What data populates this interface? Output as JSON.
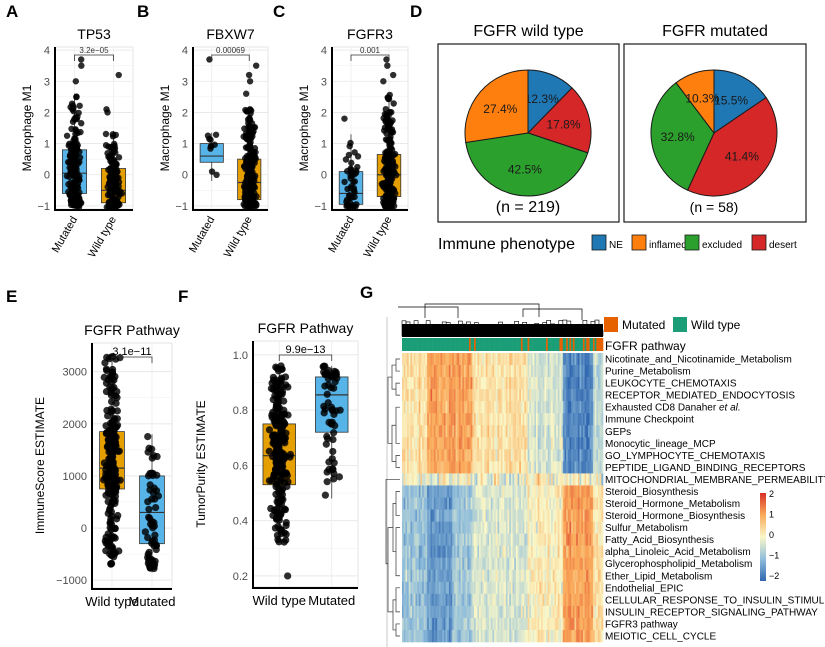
{
  "panels": {
    "A": "A",
    "B": "B",
    "C": "C",
    "D": "D",
    "E": "E",
    "F": "F",
    "G": "G"
  },
  "colors": {
    "mutated_box": "#56B4E9",
    "wildtype_box": "#E69F00",
    "NE": "#1F77B4",
    "inflamed": "#FF7F0E",
    "excluded": "#2CA02C",
    "desert": "#D62728",
    "annot_mutated": "#E66100",
    "annot_wildtype": "#1B9E77"
  },
  "chart_data": [
    {
      "id": "A",
      "type": "box",
      "title": "TP53",
      "ylabel": "Macrophage M1",
      "categories": [
        "Mutated",
        "Wild type"
      ],
      "ylim": [
        -1.1,
        4.1
      ],
      "yticks": [
        -1,
        0,
        1,
        2,
        3,
        4
      ],
      "pvalue": "3.2e−05",
      "series": [
        {
          "name": "Mutated",
          "q1": -0.6,
          "median": 0.05,
          "q3": 0.8,
          "whisker_low": -1.05,
          "whisker_high": 2.6,
          "outliers": [
            3.5,
            3.7,
            3.0
          ]
        },
        {
          "name": "Wild type",
          "q1": -0.9,
          "median": -0.5,
          "q3": 0.2,
          "whisker_low": -1.05,
          "whisker_high": 1.4,
          "outliers": [
            3.2,
            2.1,
            2.0
          ]
        }
      ]
    },
    {
      "id": "B",
      "type": "box",
      "title": "FBXW7",
      "ylabel": "Macrophage M1",
      "categories": [
        "Mutated",
        "Wild type"
      ],
      "ylim": [
        -1.1,
        4.1
      ],
      "yticks": [
        -1,
        0,
        1,
        2,
        3,
        4
      ],
      "pvalue": "0.00069",
      "series": [
        {
          "name": "Mutated",
          "q1": 0.4,
          "median": 0.6,
          "q3": 1.0,
          "whisker_low": -0.2,
          "whisker_high": 1.35,
          "outliers": [
            3.7
          ]
        },
        {
          "name": "Wild type",
          "q1": -0.8,
          "median": -0.25,
          "q3": 0.5,
          "whisker_low": -1.05,
          "whisker_high": 2.1,
          "outliers": [
            3.5,
            3.2,
            3.0,
            2.6
          ]
        }
      ]
    },
    {
      "id": "C",
      "type": "box",
      "title": "FGFR3",
      "ylabel": "Macrophage M1",
      "categories": [
        "Mutated",
        "Wild type"
      ],
      "ylim": [
        -1.1,
        4.1
      ],
      "yticks": [
        -1,
        0,
        1,
        2,
        3,
        4
      ],
      "pvalue": "0.001",
      "series": [
        {
          "name": "Mutated",
          "q1": -0.95,
          "median": -0.6,
          "q3": 0.1,
          "whisker_low": -1.05,
          "whisker_high": 1.3,
          "outliers": [
            1.8
          ]
        },
        {
          "name": "Wild type",
          "q1": -0.7,
          "median": 0.0,
          "q3": 0.65,
          "whisker_low": -1.05,
          "whisker_high": 2.6,
          "outliers": [
            3.7,
            3.5,
            3.2,
            3.0
          ]
        }
      ]
    },
    {
      "id": "D1",
      "type": "pie",
      "title": "FGFR wild type",
      "n_label": "(n = 219)",
      "slices": [
        {
          "label": "NE",
          "value": 12.3,
          "text": "12.3%"
        },
        {
          "label": "desert",
          "value": 17.8,
          "text": "17.8%"
        },
        {
          "label": "excluded",
          "value": 42.5,
          "text": "42.5%"
        },
        {
          "label": "inflamed",
          "value": 27.4,
          "text": "27.4%"
        }
      ]
    },
    {
      "id": "D2",
      "type": "pie",
      "title": "FGFR mutated",
      "n_label": "(n = 58)",
      "slices": [
        {
          "label": "NE",
          "value": 15.5,
          "text": "15.5%"
        },
        {
          "label": "desert",
          "value": 41.4,
          "text": "41.4%"
        },
        {
          "label": "excluded",
          "value": 32.8,
          "text": "32.8%"
        },
        {
          "label": "inflamed",
          "value": 10.3,
          "text": "10.3%"
        }
      ]
    },
    {
      "id": "E",
      "type": "box",
      "title": "FGFR Pathway",
      "ylabel": "ImmuneScore ESTIMATE",
      "categories": [
        "Wild type",
        "Mutated"
      ],
      "ylim": [
        -1150,
        3550
      ],
      "yticks": [
        -1000,
        0,
        1000,
        2000,
        3000
      ],
      "pvalue": "3.1e−11",
      "series": [
        {
          "name": "Wild type",
          "q1": 750,
          "median": 1150,
          "q3": 1850,
          "whisker_low": -700,
          "whisker_high": 3300,
          "outliers": []
        },
        {
          "name": "Mutated",
          "q1": -300,
          "median": 300,
          "q3": 1000,
          "whisker_low": -850,
          "whisker_high": 1800,
          "outliers": []
        }
      ]
    },
    {
      "id": "F",
      "type": "box",
      "title": "FGFR Pathway",
      "ylabel": "TumorPurity ESTIMATE",
      "categories": [
        "Wild type",
        "Mutated"
      ],
      "ylim": [
        0.16,
        1.05
      ],
      "yticks": [
        0.2,
        0.4,
        0.6,
        0.8,
        1.0
      ],
      "ytick_labels": [
        "0.2",
        "0.4",
        "0.6",
        "0.8",
        "1.0"
      ],
      "pvalue": "9.9e−13",
      "series": [
        {
          "name": "Wild type",
          "q1": 0.53,
          "median": 0.635,
          "q3": 0.75,
          "whisker_low": 0.32,
          "whisker_high": 0.96,
          "outliers": [
            0.2
          ]
        },
        {
          "name": "Mutated",
          "q1": 0.72,
          "median": 0.855,
          "q3": 0.92,
          "whisker_low": 0.48,
          "whisker_high": 0.96,
          "outliers": []
        }
      ]
    },
    {
      "id": "G",
      "type": "heatmap",
      "annotation_title": "FGFR pathway",
      "annotation_legend": [
        "Mutated",
        "Wild type"
      ],
      "colorbar": {
        "min": -2,
        "max": 2,
        "ticks": [
          2,
          1,
          0,
          -1,
          -2
        ],
        "tick_labels": [
          "2",
          "1",
          "0",
          "−1",
          "−2"
        ]
      },
      "rows": [
        "Nicotinate_and_Nicotinamide_Metabolism",
        "Purine_Metabolism",
        "LEUKOCYTE_CHEMOTAXIS",
        "RECEPTOR_MEDIATED_ENDOCYTOSIS",
        "Exhausted CD8 Danaher et al.",
        "Immune Checkpoint",
        "GEPs",
        "Monocytic_lineage_MCP",
        "GO_LYMPHOCYTE_CHEMOTAXIS",
        "PEPTIDE_LIGAND_BINDING_RECEPTORS",
        "MITOCHONDRIAL_MEMBRANE_PERMEABILITY",
        "Steroid_Biosynthesis",
        "Steroid_Hormone_Metabolism",
        "Steroid_Hormone_Biosynthesis",
        "Sulfur_Metabolism",
        "Fatty_Acid_Biosynthesis",
        "alpha_Linoleic_Acid_Metabolism",
        "Glycerophospholipid_Metabolism",
        "Ether_Lipid_Metabolism",
        "Endothelial_EPIC",
        "CELLULAR_RESPONSE_TO_INSULIN_STIMULUS",
        "INSULIN_RECEPTOR_SIGNALING_PATHWAY",
        "FGFR3 pathway",
        "MEIOTIC_CELL_CYCLE"
      ],
      "row_groups": {
        "immune_up_cluster": [
          0,
          9
        ],
        "mixed": [
          10,
          10
        ],
        "metabolic_cluster": [
          11,
          23
        ]
      },
      "mutated_fraction_of_columns": 0.21
    }
  ],
  "legend_d": {
    "title": "Immune phenotype",
    "items": [
      "NE",
      "inflamed",
      "excluded",
      "desert"
    ]
  }
}
